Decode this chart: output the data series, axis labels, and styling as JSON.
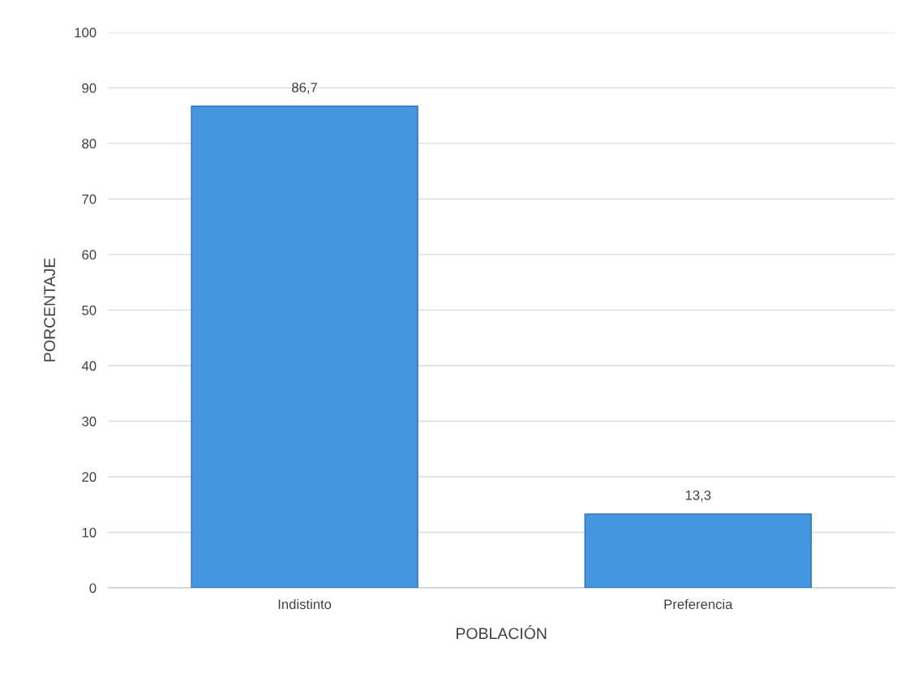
{
  "chart_data": {
    "type": "bar",
    "xlabel": "POBLACIÓN",
    "ylabel": "PORCENTAJE",
    "categories": [
      "Indistinto",
      "Preferencia"
    ],
    "values": [
      86.7,
      13.3
    ],
    "value_labels": [
      "86,7",
      "13,3"
    ],
    "color": "#4596e0",
    "ylim": [
      0,
      100
    ],
    "yticks": [
      0,
      10,
      20,
      30,
      40,
      50,
      60,
      70,
      80,
      90,
      100
    ],
    "grid": "y"
  }
}
